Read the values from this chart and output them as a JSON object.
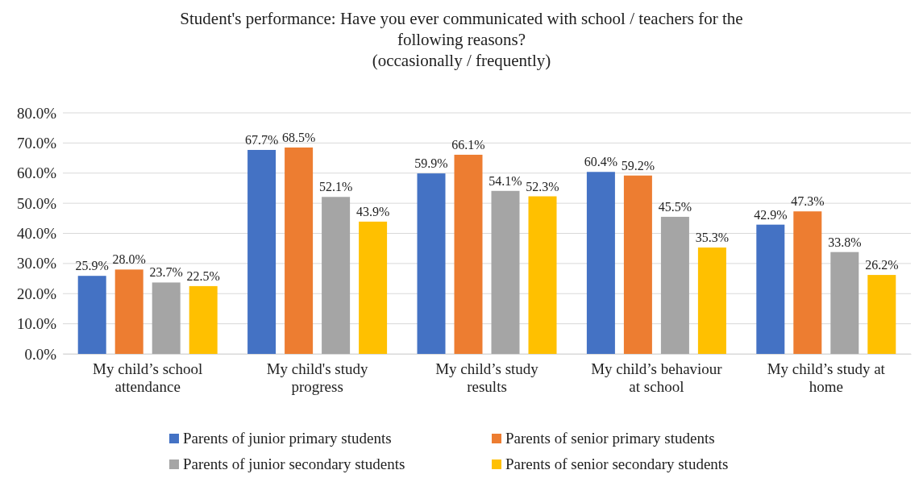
{
  "chart_data": {
    "type": "bar",
    "title": "Student's performance: Have you ever communicated with school / teachers for the following reasons?\n(occasionally / frequently)",
    "categories": [
      "My child’s school attendance",
      "My child's study progress",
      "My child’s study results",
      "My child’s behaviour at school",
      "My child’s study at home"
    ],
    "series": [
      {
        "name": "Parents of junior primary students",
        "color": "#4472c4",
        "values": [
          25.9,
          67.7,
          59.9,
          60.4,
          42.9
        ],
        "value_labels": [
          "25.9%",
          "67.7%",
          "59.9%",
          "60.4%",
          "42.9%"
        ]
      },
      {
        "name": "Parents of senior primary students",
        "color": "#ed7d31",
        "values": [
          28.0,
          68.5,
          66.1,
          59.2,
          47.3
        ],
        "value_labels": [
          "28.0%",
          "68.5%",
          "66.1%",
          "59.2%",
          "47.3%"
        ]
      },
      {
        "name": "Parents of junior secondary students",
        "color": "#a5a5a5",
        "values": [
          23.7,
          52.1,
          54.1,
          45.5,
          33.8
        ],
        "value_labels": [
          "23.7%",
          "52.1%",
          "54.1%",
          "45.5%",
          "33.8%"
        ]
      },
      {
        "name": "Parents of senior secondary students",
        "color": "#ffc000",
        "values": [
          22.5,
          43.9,
          52.3,
          35.3,
          26.2
        ],
        "value_labels": [
          "22.5%",
          "43.9%",
          "52.3%",
          "35.3%",
          "26.2%"
        ]
      }
    ],
    "ylim": [
      0,
      80
    ],
    "yticks": [
      {
        "value": 0,
        "label": "0.0%"
      },
      {
        "value": 10,
        "label": "10.0%"
      },
      {
        "value": 20,
        "label": "20.0%"
      },
      {
        "value": 30,
        "label": "30.0%"
      },
      {
        "value": 40,
        "label": "40.0%"
      },
      {
        "value": 50,
        "label": "50.0%"
      },
      {
        "value": 60,
        "label": "60.0%"
      },
      {
        "value": 70,
        "label": "70.0%"
      },
      {
        "value": 80,
        "label": "80.0%"
      }
    ],
    "grid": "y",
    "legend": "bottom"
  }
}
